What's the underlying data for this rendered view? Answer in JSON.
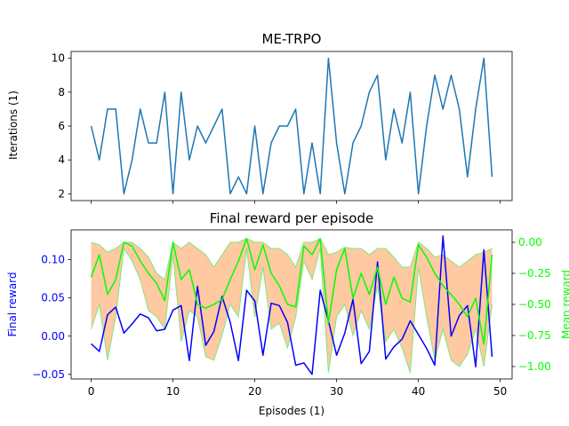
{
  "colors": {
    "line": "#1f77b4",
    "final_reward": "#0000ff",
    "mean_reward": "#00ff00",
    "band_fill": "#ffbf90",
    "band_edge": "#7fe87f"
  },
  "chart_data": [
    {
      "type": "line",
      "title": "ME-TRPO",
      "xlabel": "",
      "ylabel": "Iterations (1)",
      "xlim": [
        -2.45,
        51.45
      ],
      "ylim": [
        1.6,
        10.4
      ],
      "xticks": [
        0,
        10,
        20,
        30,
        40,
        50
      ],
      "yticks": [
        2,
        4,
        6,
        8,
        10
      ],
      "x": [
        0,
        1,
        2,
        3,
        4,
        5,
        6,
        7,
        8,
        9,
        10,
        11,
        12,
        13,
        14,
        15,
        16,
        17,
        18,
        19,
        20,
        21,
        22,
        23,
        24,
        25,
        26,
        27,
        28,
        29,
        30,
        31,
        32,
        33,
        34,
        35,
        36,
        37,
        38,
        39,
        40,
        41,
        42,
        43,
        44,
        45,
        46,
        47,
        48,
        49
      ],
      "series": [
        {
          "values": [
            6,
            4,
            7,
            7,
            2,
            4,
            7,
            5,
            5,
            8,
            2,
            8,
            4,
            6,
            5,
            6,
            7,
            2,
            3,
            2,
            6,
            2,
            5,
            6,
            6,
            7,
            2,
            5,
            2,
            10,
            5,
            2,
            5,
            6,
            8,
            9,
            4,
            7,
            5,
            8,
            2,
            6,
            9,
            7,
            9,
            7,
            3,
            7,
            10,
            3
          ]
        }
      ]
    },
    {
      "type": "line",
      "title": "Final reward per episode",
      "xlabel": "Episodes (1)",
      "ylabel": "Final reward",
      "y2label": "Mean reward",
      "xlim": [
        -2.45,
        51.45
      ],
      "ylim": [
        -0.056,
        0.139
      ],
      "y2lim": [
        -1.1,
        0.1
      ],
      "xticks": [
        0,
        10,
        20,
        30,
        40,
        50
      ],
      "yticks": [
        -0.05,
        0.0,
        0.05,
        0.1
      ],
      "ytick_labels": [
        "−0.05",
        "0.00",
        "0.05",
        "0.10"
      ],
      "y2ticks": [
        -1.0,
        -0.75,
        -0.5,
        -0.25,
        0.0
      ],
      "y2tick_labels": [
        "−1.00",
        "−0.75",
        "−0.50",
        "−0.25",
        "0.00"
      ],
      "x": [
        0,
        1,
        2,
        3,
        4,
        5,
        6,
        7,
        8,
        9,
        10,
        11,
        12,
        13,
        14,
        15,
        16,
        17,
        18,
        19,
        20,
        21,
        22,
        23,
        24,
        25,
        26,
        27,
        28,
        29,
        30,
        31,
        32,
        33,
        34,
        35,
        36,
        37,
        38,
        39,
        40,
        41,
        42,
        43,
        44,
        45,
        46,
        47,
        48,
        49
      ],
      "series": [
        {
          "axis": "left",
          "values": [
            -0.01,
            -0.02,
            0.028,
            0.038,
            0.004,
            0.016,
            0.029,
            0.024,
            0.007,
            0.009,
            0.034,
            0.04,
            -0.032,
            0.065,
            -0.012,
            0.006,
            0.052,
            0.018,
            -0.032,
            0.06,
            0.046,
            -0.025,
            0.043,
            0.04,
            0.018,
            -0.038,
            -0.035,
            -0.05,
            0.06,
            0.02,
            -0.025,
            0.004,
            0.048,
            -0.036,
            -0.02,
            0.097,
            -0.03,
            -0.014,
            -0.004,
            0.02,
            0.002,
            -0.016,
            -0.038,
            0.131,
            0.0,
            0.027,
            0.04,
            -0.04,
            0.113,
            -0.027
          ]
        },
        {
          "axis": "right",
          "values": [
            -0.28,
            -0.1,
            -0.42,
            -0.3,
            0.0,
            -0.03,
            -0.15,
            -0.25,
            -0.33,
            -0.47,
            0.0,
            -0.3,
            -0.22,
            -0.5,
            -0.53,
            -0.5,
            -0.46,
            -0.3,
            -0.15,
            0.03,
            -0.22,
            -0.02,
            -0.25,
            -0.35,
            -0.5,
            -0.52,
            -0.03,
            -0.1,
            0.03,
            -0.65,
            -0.22,
            -0.05,
            -0.45,
            -0.25,
            -0.42,
            -0.2,
            -0.5,
            -0.28,
            -0.45,
            -0.48,
            -0.02,
            -0.12,
            -0.25,
            -0.35,
            -0.42,
            -0.5,
            -0.6,
            -0.45,
            -0.82,
            -0.1
          ]
        }
      ],
      "band": {
        "axis": "right",
        "upper": [
          0.0,
          -0.02,
          -0.08,
          -0.05,
          0.0,
          0.0,
          -0.05,
          -0.12,
          -0.25,
          -0.3,
          0.0,
          -0.05,
          0.0,
          -0.05,
          -0.1,
          -0.2,
          -0.1,
          0.0,
          0.0,
          0.03,
          0.0,
          0.0,
          -0.05,
          -0.05,
          -0.1,
          -0.2,
          0.0,
          0.0,
          0.03,
          -0.1,
          -0.08,
          -0.04,
          -0.05,
          -0.05,
          -0.1,
          -0.05,
          -0.05,
          -0.12,
          -0.2,
          -0.2,
          0.0,
          -0.05,
          -0.12,
          -0.1,
          -0.15,
          -0.2,
          -0.15,
          -0.1,
          -0.08,
          -0.05
        ],
        "lower": [
          -0.7,
          -0.5,
          -0.95,
          -0.6,
          -0.05,
          -0.15,
          -0.3,
          -0.55,
          -0.6,
          -0.7,
          -0.1,
          -0.8,
          -0.55,
          -0.6,
          -0.92,
          -0.95,
          -0.75,
          -0.5,
          -0.6,
          -0.05,
          -0.6,
          -0.2,
          -0.7,
          -0.65,
          -0.85,
          -0.6,
          -0.15,
          -0.3,
          -0.05,
          -1.05,
          -0.6,
          -0.5,
          -0.75,
          -0.55,
          -0.7,
          -0.35,
          -0.8,
          -0.7,
          -0.85,
          -1.05,
          -0.2,
          -0.6,
          -0.95,
          -0.7,
          -0.95,
          -1.0,
          -0.9,
          -0.7,
          -1.0,
          -0.5
        ]
      }
    }
  ]
}
